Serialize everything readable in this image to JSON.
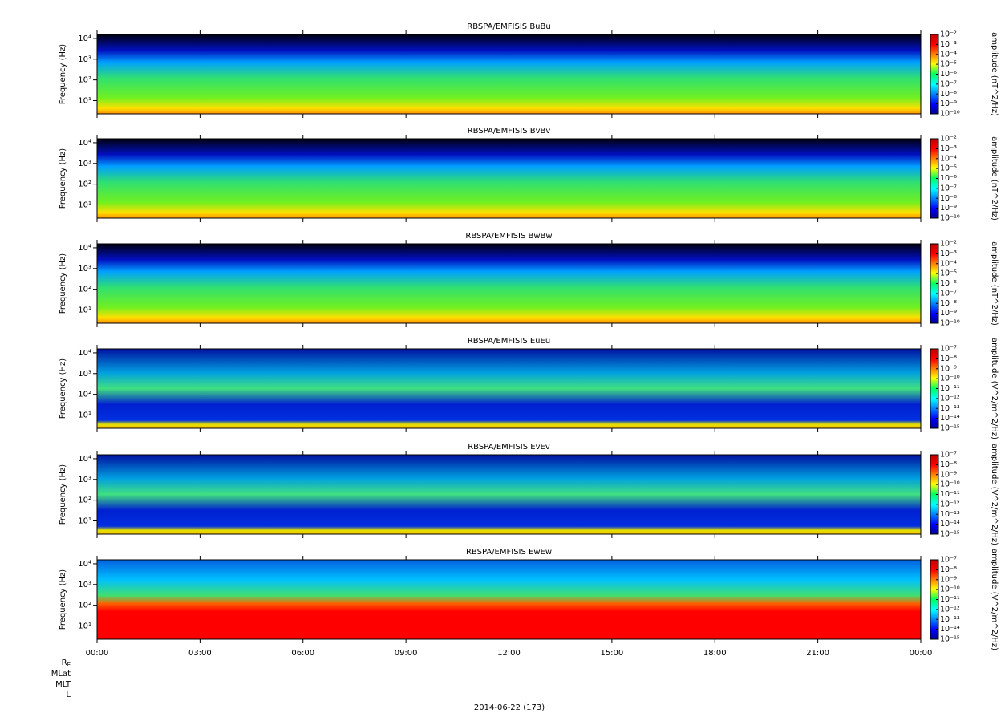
{
  "chart_data": [
    {
      "type": "spectrogram",
      "title": "RBSPA/EMFISIS  BuBu",
      "ylabel": "Frequency (Hz)",
      "log_y": true,
      "ylim": [
        2.3,
        15500
      ],
      "yticks": [
        {
          "value": 10,
          "label": "10¹"
        },
        {
          "value": 100,
          "label": "10²"
        },
        {
          "value": 1000,
          "label": "10³"
        },
        {
          "value": 10000,
          "label": "10⁴"
        }
      ],
      "colorbar_label": "amplitude (nT^2/Hz)",
      "clim": [
        1e-10,
        0.01
      ],
      "cticks": [
        {
          "value": 0.01,
          "label": "10⁻²"
        },
        {
          "value": 0.001,
          "label": "10⁻³"
        },
        {
          "value": 0.0001,
          "label": "10⁻⁴"
        },
        {
          "value": 1e-05,
          "label": "10⁻⁵"
        },
        {
          "value": 1e-06,
          "label": "10⁻⁶"
        },
        {
          "value": 1e-07,
          "label": "10⁻⁷"
        },
        {
          "value": 1e-08,
          "label": "10⁻⁸"
        },
        {
          "value": 1e-09,
          "label": "10⁻⁹"
        },
        {
          "value": 1e-10,
          "label": "10⁻¹⁰"
        }
      ]
    },
    {
      "type": "spectrogram",
      "title": "RBSPA/EMFISIS  BvBv",
      "ylabel": "Frequency (Hz)",
      "log_y": true,
      "ylim": [
        2.3,
        15500
      ],
      "yticks": [
        {
          "value": 10,
          "label": "10¹"
        },
        {
          "value": 100,
          "label": "10²"
        },
        {
          "value": 1000,
          "label": "10³"
        },
        {
          "value": 10000,
          "label": "10⁴"
        }
      ],
      "colorbar_label": "amplitude (nT^2/Hz)",
      "clim": [
        1e-10,
        0.01
      ],
      "cticks": [
        {
          "value": 0.01,
          "label": "10⁻²"
        },
        {
          "value": 0.001,
          "label": "10⁻³"
        },
        {
          "value": 0.0001,
          "label": "10⁻⁴"
        },
        {
          "value": 1e-05,
          "label": "10⁻⁵"
        },
        {
          "value": 1e-06,
          "label": "10⁻⁶"
        },
        {
          "value": 1e-07,
          "label": "10⁻⁷"
        },
        {
          "value": 1e-08,
          "label": "10⁻⁸"
        },
        {
          "value": 1e-09,
          "label": "10⁻⁹"
        },
        {
          "value": 1e-10,
          "label": "10⁻¹⁰"
        }
      ]
    },
    {
      "type": "spectrogram",
      "title": "RBSPA/EMFISIS  BwBw",
      "ylabel": "Frequency (Hz)",
      "log_y": true,
      "ylim": [
        2.3,
        15500
      ],
      "yticks": [
        {
          "value": 10,
          "label": "10¹"
        },
        {
          "value": 100,
          "label": "10²"
        },
        {
          "value": 1000,
          "label": "10³"
        },
        {
          "value": 10000,
          "label": "10⁴"
        }
      ],
      "colorbar_label": "amplitude (nT^2/Hz)",
      "clim": [
        1e-10,
        0.01
      ],
      "cticks": [
        {
          "value": 0.01,
          "label": "10⁻²"
        },
        {
          "value": 0.001,
          "label": "10⁻³"
        },
        {
          "value": 0.0001,
          "label": "10⁻⁴"
        },
        {
          "value": 1e-05,
          "label": "10⁻⁵"
        },
        {
          "value": 1e-06,
          "label": "10⁻⁶"
        },
        {
          "value": 1e-07,
          "label": "10⁻⁷"
        },
        {
          "value": 1e-08,
          "label": "10⁻⁸"
        },
        {
          "value": 1e-09,
          "label": "10⁻⁹"
        },
        {
          "value": 1e-10,
          "label": "10⁻¹⁰"
        }
      ]
    },
    {
      "type": "spectrogram",
      "title": "RBSPA/EMFISIS  EuEu",
      "ylabel": "Frequency (Hz)",
      "log_y": true,
      "ylim": [
        2.3,
        15500
      ],
      "yticks": [
        {
          "value": 10,
          "label": "10¹"
        },
        {
          "value": 100,
          "label": "10²"
        },
        {
          "value": 1000,
          "label": "10³"
        },
        {
          "value": 10000,
          "label": "10⁴"
        }
      ],
      "colorbar_label": "amplitude (V^2/m^2/Hz)",
      "clim": [
        1e-15,
        1e-07
      ],
      "cticks": [
        {
          "value": 1e-07,
          "label": "10⁻⁷"
        },
        {
          "value": 1e-08,
          "label": "10⁻⁸"
        },
        {
          "value": 1e-09,
          "label": "10⁻⁹"
        },
        {
          "value": 1e-10,
          "label": "10⁻¹⁰"
        },
        {
          "value": 1e-11,
          "label": "10⁻¹¹"
        },
        {
          "value": 1e-12,
          "label": "10⁻¹²"
        },
        {
          "value": 1e-13,
          "label": "10⁻¹³"
        },
        {
          "value": 1e-14,
          "label": "10⁻¹⁴"
        },
        {
          "value": 1e-15,
          "label": "10⁻¹⁵"
        }
      ]
    },
    {
      "type": "spectrogram",
      "title": "RBSPA/EMFISIS  EvEv",
      "ylabel": "Frequency (Hz)",
      "log_y": true,
      "ylim": [
        2.3,
        15500
      ],
      "yticks": [
        {
          "value": 10,
          "label": "10¹"
        },
        {
          "value": 100,
          "label": "10²"
        },
        {
          "value": 1000,
          "label": "10³"
        },
        {
          "value": 10000,
          "label": "10⁴"
        }
      ],
      "colorbar_label": "amplitude (V^2/m^2/Hz)",
      "clim": [
        1e-15,
        1e-07
      ],
      "cticks": [
        {
          "value": 1e-07,
          "label": "10⁻⁷"
        },
        {
          "value": 1e-08,
          "label": "10⁻⁸"
        },
        {
          "value": 1e-09,
          "label": "10⁻⁹"
        },
        {
          "value": 1e-10,
          "label": "10⁻¹⁰"
        },
        {
          "value": 1e-11,
          "label": "10⁻¹¹"
        },
        {
          "value": 1e-12,
          "label": "10⁻¹²"
        },
        {
          "value": 1e-13,
          "label": "10⁻¹³"
        },
        {
          "value": 1e-14,
          "label": "10⁻¹⁴"
        },
        {
          "value": 1e-15,
          "label": "10⁻¹⁵"
        }
      ]
    },
    {
      "type": "spectrogram",
      "title": "RBSPA/EMFISIS  EwEw",
      "ylabel": "Frequency (Hz)",
      "log_y": true,
      "ylim": [
        2.3,
        15500
      ],
      "yticks": [
        {
          "value": 10,
          "label": "10¹"
        },
        {
          "value": 100,
          "label": "10²"
        },
        {
          "value": 1000,
          "label": "10³"
        },
        {
          "value": 10000,
          "label": "10⁴"
        }
      ],
      "colorbar_label": "amplitude (V^2/m^2/Hz)",
      "clim": [
        1e-15,
        1e-07
      ],
      "cticks": [
        {
          "value": 1e-07,
          "label": "10⁻⁷"
        },
        {
          "value": 1e-08,
          "label": "10⁻⁸"
        },
        {
          "value": 1e-09,
          "label": "10⁻⁹"
        },
        {
          "value": 1e-10,
          "label": "10⁻¹⁰"
        },
        {
          "value": 1e-11,
          "label": "10⁻¹¹"
        },
        {
          "value": 1e-12,
          "label": "10⁻¹²"
        },
        {
          "value": 1e-13,
          "label": "10⁻¹³"
        },
        {
          "value": 1e-14,
          "label": "10⁻¹⁴"
        },
        {
          "value": 1e-15,
          "label": "10⁻¹⁵"
        }
      ]
    }
  ],
  "x_axis": {
    "xlim": [
      0,
      24
    ],
    "xticks": [
      {
        "value": 0,
        "label": "00:00"
      },
      {
        "value": 3,
        "label": "03:00"
      },
      {
        "value": 6,
        "label": "06:00"
      },
      {
        "value": 9,
        "label": "09:00"
      },
      {
        "value": 12,
        "label": "12:00"
      },
      {
        "value": 15,
        "label": "15:00"
      },
      {
        "value": 18,
        "label": "18:00"
      },
      {
        "value": 21,
        "label": "21:00"
      },
      {
        "value": 24,
        "label": "00:00"
      }
    ],
    "xlabel": "2014-06-22 (173)",
    "ephemeris": [
      {
        "text": "R",
        "sub": "E"
      },
      {
        "text": "MLat"
      },
      {
        "text": "MLT"
      },
      {
        "text": "L"
      }
    ]
  }
}
